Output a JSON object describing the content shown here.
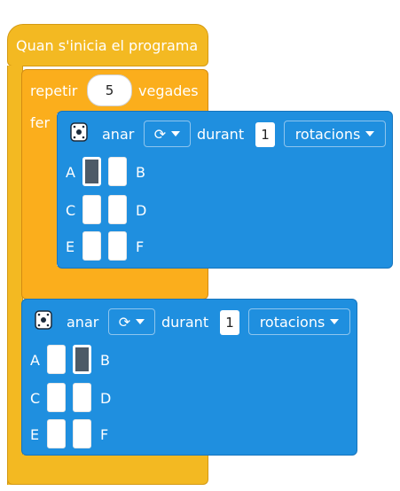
{
  "hat": {
    "label": "Quan s'inicia el programa"
  },
  "repeat": {
    "label_repeat": "repetir",
    "count": "5",
    "label_times": "vegades",
    "label_do": "fer"
  },
  "motor_blocks": [
    {
      "label_go": "anar",
      "direction_icon": "rotate-clockwise-icon",
      "label_during": "durant",
      "amount": "1",
      "unit": "rotacions",
      "rows": [
        {
          "left": "A",
          "right": "B",
          "cells": [
            true,
            false
          ]
        },
        {
          "left": "C",
          "right": "D",
          "cells": [
            false,
            false
          ]
        },
        {
          "left": "E",
          "right": "F",
          "cells": [
            false,
            false
          ]
        }
      ]
    },
    {
      "label_go": "anar",
      "direction_icon": "rotate-clockwise-icon",
      "label_during": "durant",
      "amount": "1",
      "unit": "rotacions",
      "rows": [
        {
          "left": "A",
          "right": "B",
          "cells": [
            false,
            true
          ]
        },
        {
          "left": "C",
          "right": "D",
          "cells": [
            false,
            false
          ]
        },
        {
          "left": "E",
          "right": "F",
          "cells": [
            false,
            false
          ]
        }
      ]
    }
  ],
  "rotate_glyph": "⟳"
}
